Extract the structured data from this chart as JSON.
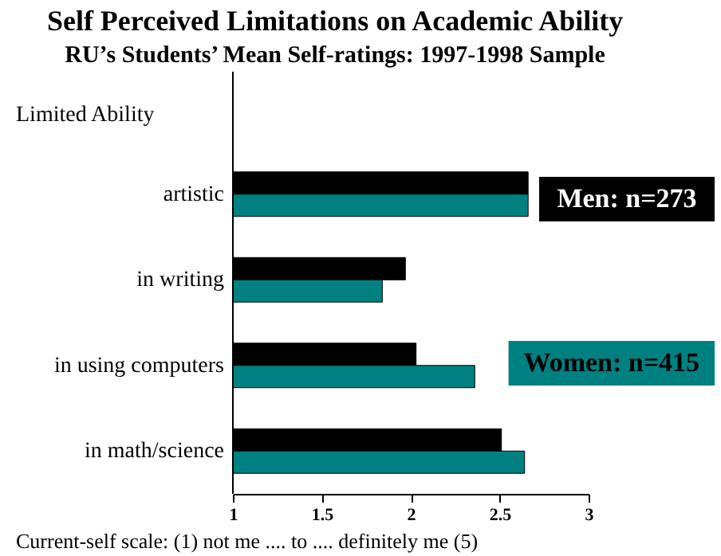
{
  "chart_data": {
    "type": "bar",
    "orientation": "horizontal",
    "title": "Self Perceived Limitations on Academic Ability",
    "subtitle": "RU’s Students’ Mean Self-ratings:  1997-1998 Sample",
    "ylabel": "Limited Ability",
    "xlabel": "Current-self scale: (1) not me .... to .... definitely me (5)",
    "categories": [
      "artistic",
      "in writing",
      "in using computers",
      "in math/science"
    ],
    "series": [
      {
        "name": "Men: n=273",
        "color": "#000000",
        "values": [
          2.66,
          1.97,
          2.03,
          2.51
        ]
      },
      {
        "name": "Women: n=415",
        "color": "#008080",
        "values": [
          2.66,
          1.84,
          2.36,
          2.64
        ]
      }
    ],
    "xlim": [
      1,
      3
    ],
    "xticks": [
      1,
      1.5,
      2,
      2.5,
      3
    ],
    "grid": false,
    "legend": "right"
  }
}
